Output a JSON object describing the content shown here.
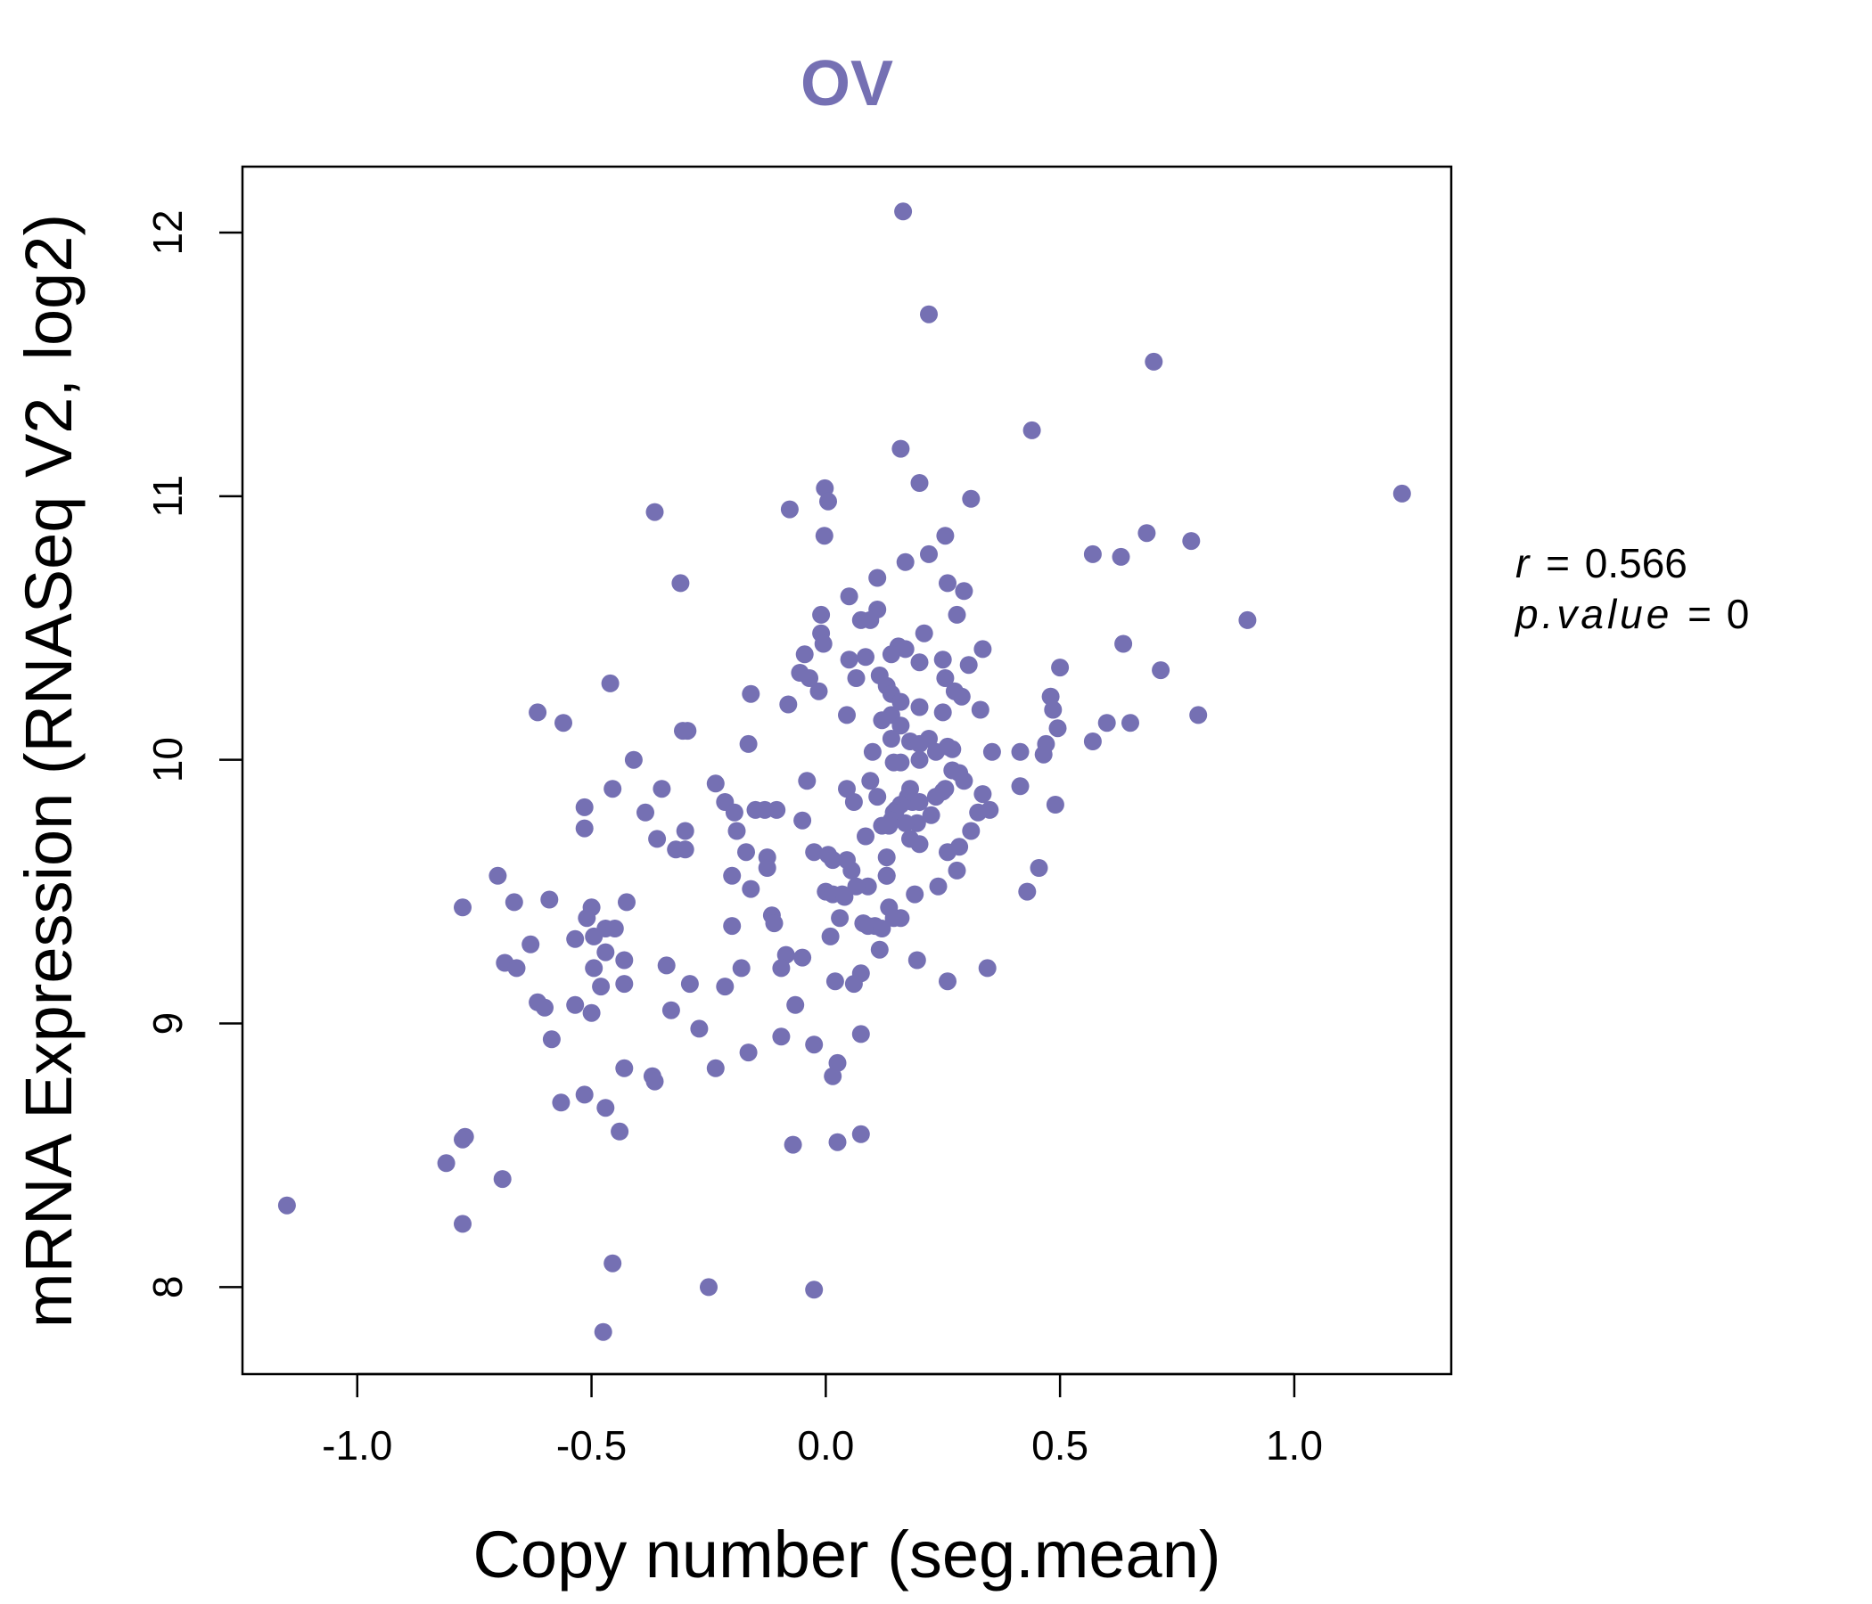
{
  "chart_data": {
    "type": "scatter",
    "title": "OV",
    "xlabel": "Copy number (seg.mean)",
    "ylabel": "mRNA Expression (RNASeq V2, log2)",
    "xlim": [
      -1.245,
      1.335
    ],
    "ylim": [
      7.67,
      12.25
    ],
    "xticks": [
      -1.0,
      -0.5,
      0.0,
      0.5,
      1.0
    ],
    "xtick_labels": [
      "-1.0",
      "-0.5",
      "0.0",
      "0.5",
      "1.0"
    ],
    "yticks": [
      8,
      9,
      10,
      11,
      12
    ],
    "ytick_labels": [
      "8",
      "9",
      "10",
      "11",
      "12"
    ],
    "color": "#7570b3",
    "stats": {
      "r_label": "r",
      "r_value": "0.566",
      "p_label": "p.value",
      "p_value": "0"
    },
    "points": [
      [
        0.165,
        12.08
      ],
      [
        0.22,
        11.69
      ],
      [
        0.7,
        11.51
      ],
      [
        0.44,
        11.25
      ],
      [
        1.23,
        11.01
      ],
      [
        0.16,
        11.18
      ],
      [
        0.2,
        11.05
      ],
      [
        0.31,
        10.99
      ],
      [
        -0.002,
        11.03
      ],
      [
        0.005,
        10.98
      ],
      [
        -0.077,
        10.95
      ],
      [
        -0.365,
        10.94
      ],
      [
        0.685,
        10.86
      ],
      [
        0.78,
        10.83
      ],
      [
        0.255,
        10.85
      ],
      [
        -0.003,
        10.85
      ],
      [
        0.57,
        10.78
      ],
      [
        0.63,
        10.77
      ],
      [
        0.22,
        10.78
      ],
      [
        0.17,
        10.75
      ],
      [
        -0.31,
        10.67
      ],
      [
        0.11,
        10.69
      ],
      [
        0.26,
        10.67
      ],
      [
        0.295,
        10.64
      ],
      [
        0.05,
        10.62
      ],
      [
        0.11,
        10.57
      ],
      [
        -0.01,
        10.55
      ],
      [
        0.28,
        10.55
      ],
      [
        0.075,
        10.53
      ],
      [
        0.9,
        10.53
      ],
      [
        0.095,
        10.53
      ],
      [
        0.21,
        10.48
      ],
      [
        -0.01,
        10.48
      ],
      [
        0.635,
        10.44
      ],
      [
        -0.005,
        10.44
      ],
      [
        0.155,
        10.43
      ],
      [
        0.335,
        10.42
      ],
      [
        0.17,
        10.42
      ],
      [
        0.14,
        10.4
      ],
      [
        -0.045,
        10.4
      ],
      [
        0.085,
        10.39
      ],
      [
        0.05,
        10.38
      ],
      [
        0.25,
        10.38
      ],
      [
        0.2,
        10.37
      ],
      [
        0.305,
        10.36
      ],
      [
        0.5,
        10.35
      ],
      [
        0.715,
        10.34
      ],
      [
        -0.055,
        10.33
      ],
      [
        0.115,
        10.32
      ],
      [
        0.065,
        10.31
      ],
      [
        -0.035,
        10.31
      ],
      [
        0.255,
        10.31
      ],
      [
        -0.46,
        10.29
      ],
      [
        0.13,
        10.28
      ],
      [
        0.275,
        10.26
      ],
      [
        -0.015,
        10.26
      ],
      [
        0.14,
        10.25
      ],
      [
        -0.16,
        10.25
      ],
      [
        0.48,
        10.24
      ],
      [
        0.29,
        10.24
      ],
      [
        0.16,
        10.22
      ],
      [
        -0.08,
        10.21
      ],
      [
        0.2,
        10.2
      ],
      [
        0.485,
        10.19
      ],
      [
        0.33,
        10.19
      ],
      [
        0.25,
        10.18
      ],
      [
        -0.615,
        10.18
      ],
      [
        0.795,
        10.17
      ],
      [
        0.14,
        10.17
      ],
      [
        0.045,
        10.17
      ],
      [
        0.12,
        10.15
      ],
      [
        0.6,
        10.14
      ],
      [
        0.65,
        10.14
      ],
      [
        -0.56,
        10.14
      ],
      [
        0.16,
        10.13
      ],
      [
        0.495,
        10.12
      ],
      [
        -0.295,
        10.11
      ],
      [
        -0.305,
        10.11
      ],
      [
        0.14,
        10.08
      ],
      [
        0.22,
        10.08
      ],
      [
        0.57,
        10.07
      ],
      [
        0.18,
        10.07
      ],
      [
        0.2,
        10.06
      ],
      [
        0.47,
        10.06
      ],
      [
        -0.165,
        10.06
      ],
      [
        0.26,
        10.05
      ],
      [
        0.27,
        10.04
      ],
      [
        0.235,
        10.03
      ],
      [
        0.355,
        10.03
      ],
      [
        0.415,
        10.03
      ],
      [
        0.1,
        10.03
      ],
      [
        0.465,
        10.02
      ],
      [
        0.2,
        10.0
      ],
      [
        -0.41,
        10.0
      ],
      [
        0.16,
        9.99
      ],
      [
        0.145,
        9.99
      ],
      [
        0.27,
        9.96
      ],
      [
        0.285,
        9.95
      ],
      [
        0.295,
        9.92
      ],
      [
        -0.04,
        9.92
      ],
      [
        0.095,
        9.92
      ],
      [
        0.415,
        9.9
      ],
      [
        -0.455,
        9.89
      ],
      [
        0.18,
        9.89
      ],
      [
        0.25,
        9.88
      ],
      [
        0.255,
        9.89
      ],
      [
        0.045,
        9.89
      ],
      [
        -0.35,
        9.89
      ],
      [
        0.175,
        9.86
      ],
      [
        0.235,
        9.86
      ],
      [
        -0.235,
        9.91
      ],
      [
        0.335,
        9.87
      ],
      [
        0.11,
        9.86
      ],
      [
        0.185,
        9.84
      ],
      [
        0.2,
        9.84
      ],
      [
        0.16,
        9.83
      ],
      [
        0.06,
        9.84
      ],
      [
        0.49,
        9.83
      ],
      [
        -0.215,
        9.84
      ],
      [
        -0.515,
        9.82
      ],
      [
        0.15,
        9.81
      ],
      [
        -0.15,
        9.81
      ],
      [
        -0.105,
        9.81
      ],
      [
        -0.13,
        9.81
      ],
      [
        0.325,
        9.8
      ],
      [
        0.145,
        9.8
      ],
      [
        0.35,
        9.81
      ],
      [
        -0.385,
        9.8
      ],
      [
        -0.195,
        9.8
      ],
      [
        0.225,
        9.79
      ],
      [
        -0.05,
        9.77
      ],
      [
        0.14,
        9.77
      ],
      [
        0.195,
        9.76
      ],
      [
        0.17,
        9.76
      ],
      [
        0.12,
        9.75
      ],
      [
        0.135,
        9.75
      ],
      [
        -0.515,
        9.74
      ],
      [
        -0.3,
        9.73
      ],
      [
        0.31,
        9.73
      ],
      [
        -0.19,
        9.73
      ],
      [
        0.085,
        9.71
      ],
      [
        0.18,
        9.7
      ],
      [
        -0.36,
        9.7
      ],
      [
        0.2,
        9.68
      ],
      [
        0.285,
        9.67
      ],
      [
        -0.32,
        9.66
      ],
      [
        -0.3,
        9.66
      ],
      [
        -0.17,
        9.65
      ],
      [
        0.26,
        9.65
      ],
      [
        -0.025,
        9.65
      ],
      [
        0.005,
        9.64
      ],
      [
        0.015,
        9.62
      ],
      [
        0.13,
        9.63
      ],
      [
        0.13,
        9.56
      ],
      [
        -0.125,
        9.63
      ],
      [
        0.045,
        9.62
      ],
      [
        0.455,
        9.59
      ],
      [
        0.28,
        9.58
      ],
      [
        0.055,
        9.58
      ],
      [
        -0.125,
        9.59
      ],
      [
        0.13,
        9.56
      ],
      [
        -0.7,
        9.56
      ],
      [
        -0.2,
        9.56
      ],
      [
        0.24,
        9.52
      ],
      [
        0.09,
        9.52
      ],
      [
        0.065,
        9.52
      ],
      [
        -0.16,
        9.51
      ],
      [
        0.0,
        9.5
      ],
      [
        0.43,
        9.5
      ],
      [
        0.035,
        9.49
      ],
      [
        0.19,
        9.49
      ],
      [
        0.015,
        9.49
      ],
      [
        -0.59,
        9.47
      ],
      [
        0.04,
        9.48
      ],
      [
        -0.665,
        9.46
      ],
      [
        -0.425,
        9.46
      ],
      [
        0.135,
        9.44
      ],
      [
        -0.775,
        9.44
      ],
      [
        -0.5,
        9.44
      ],
      [
        0.16,
        9.4
      ],
      [
        -0.51,
        9.4
      ],
      [
        -0.115,
        9.41
      ],
      [
        0.03,
        9.4
      ],
      [
        0.145,
        9.4
      ],
      [
        -0.11,
        9.38
      ],
      [
        0.08,
        9.38
      ],
      [
        0.105,
        9.37
      ],
      [
        0.09,
        9.37
      ],
      [
        -0.2,
        9.37
      ],
      [
        -0.47,
        9.36
      ],
      [
        0.12,
        9.36
      ],
      [
        -0.45,
        9.36
      ],
      [
        -0.495,
        9.33
      ],
      [
        0.01,
        9.33
      ],
      [
        -0.535,
        9.32
      ],
      [
        -0.63,
        9.3
      ],
      [
        0.115,
        9.28
      ],
      [
        -0.085,
        9.26
      ],
      [
        -0.05,
        9.25
      ],
      [
        -0.47,
        9.27
      ],
      [
        0.195,
        9.24
      ],
      [
        -0.43,
        9.24
      ],
      [
        -0.34,
        9.22
      ],
      [
        0.345,
        9.21
      ],
      [
        -0.685,
        9.23
      ],
      [
        -0.495,
        9.21
      ],
      [
        -0.18,
        9.21
      ],
      [
        -0.66,
        9.21
      ],
      [
        -0.095,
        9.21
      ],
      [
        0.075,
        9.19
      ],
      [
        0.02,
        9.16
      ],
      [
        0.26,
        9.16
      ],
      [
        0.06,
        9.15
      ],
      [
        -0.43,
        9.15
      ],
      [
        -0.29,
        9.15
      ],
      [
        -0.215,
        9.14
      ],
      [
        -0.48,
        9.14
      ],
      [
        -0.33,
        9.05
      ],
      [
        -0.615,
        9.08
      ],
      [
        -0.535,
        9.07
      ],
      [
        -0.6,
        9.06
      ],
      [
        -0.065,
        9.07
      ],
      [
        -0.5,
        9.04
      ],
      [
        -0.27,
        8.98
      ],
      [
        0.075,
        8.96
      ],
      [
        -0.095,
        8.95
      ],
      [
        -0.585,
        8.94
      ],
      [
        -0.025,
        8.92
      ],
      [
        -0.165,
        8.89
      ],
      [
        0.025,
        8.85
      ],
      [
        -0.43,
        8.83
      ],
      [
        -0.235,
        8.83
      ],
      [
        -0.37,
        8.8
      ],
      [
        0.015,
        8.8
      ],
      [
        -0.365,
        8.78
      ],
      [
        -0.515,
        8.73
      ],
      [
        -0.565,
        8.7
      ],
      [
        -0.47,
        8.68
      ],
      [
        -0.44,
        8.59
      ],
      [
        0.075,
        8.58
      ],
      [
        -0.77,
        8.57
      ],
      [
        -0.775,
        8.56
      ],
      [
        0.025,
        8.55
      ],
      [
        -0.07,
        8.54
      ],
      [
        -0.81,
        8.47
      ],
      [
        -0.69,
        8.41
      ],
      [
        -1.15,
        8.31
      ],
      [
        -0.775,
        8.24
      ],
      [
        -0.455,
        8.09
      ],
      [
        -0.25,
        8.0
      ],
      [
        -0.025,
        7.99
      ],
      [
        -0.475,
        7.83
      ]
    ]
  }
}
